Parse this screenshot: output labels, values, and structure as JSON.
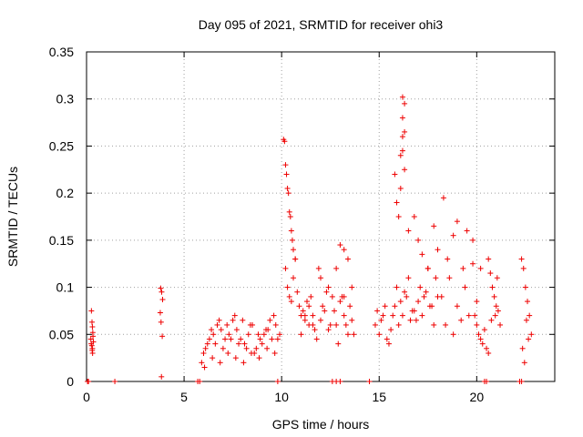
{
  "chart_data": {
    "type": "scatter",
    "title": "Day 095 of 2021, SRMTID for receiver ohi3",
    "xlabel": "GPS time / hours",
    "ylabel": "SRMTID / TECUs",
    "xlim": [
      0,
      24
    ],
    "ylim": [
      0,
      0.35
    ],
    "x_ticks": [
      0,
      5,
      10,
      15,
      20
    ],
    "x_tick_labels": [
      "0",
      "5",
      "10",
      "15",
      "20"
    ],
    "y_ticks": [
      0,
      0.05,
      0.1,
      0.15,
      0.2,
      0.25,
      0.3,
      0.35
    ],
    "y_tick_labels": [
      "0",
      "0.05",
      "0.1",
      "0.15",
      "0.2",
      "0.25",
      "0.3",
      "0.35"
    ],
    "grid": true,
    "marker": "+",
    "color": "#ee0000",
    "series": [
      {
        "name": "SRMTID",
        "x": [
          0.05,
          0.1,
          1.45,
          5.7,
          5.8,
          9.8,
          12.6,
          12.8,
          13.0,
          14.5,
          20.4,
          20.5,
          22.2,
          22.3,
          0.25,
          0.28,
          0.3,
          0.32,
          0.22,
          0.35,
          0.27,
          0.3,
          0.24,
          0.33,
          0.29,
          0.31,
          3.8,
          3.85,
          3.9,
          3.78,
          3.82,
          3.88,
          3.84,
          5.9,
          6.1,
          6.3,
          6.5,
          6.7,
          6.9,
          7.1,
          7.3,
          7.5,
          7.7,
          7.9,
          8.1,
          8.3,
          8.5,
          8.7,
          8.9,
          9.1,
          9.3,
          9.5,
          9.7,
          9.9,
          6.0,
          6.2,
          6.4,
          6.6,
          6.8,
          7.0,
          7.2,
          7.4,
          7.6,
          7.8,
          8.0,
          8.2,
          8.4,
          8.6,
          8.8,
          9.0,
          9.2,
          9.4,
          9.6,
          9.8,
          6.05,
          6.45,
          6.85,
          7.25,
          7.65,
          8.05,
          8.45,
          8.85,
          9.25,
          9.65,
          10.1,
          10.15,
          10.2,
          10.25,
          10.3,
          10.35,
          10.4,
          10.45,
          10.5,
          10.55,
          10.6,
          10.7,
          10.2,
          10.3,
          10.4,
          10.5,
          10.6,
          10.7,
          10.8,
          10.9,
          11.0,
          11.1,
          11.2,
          11.3,
          11.4,
          11.5,
          11.6,
          11.7,
          11.0,
          11.2,
          11.4,
          11.6,
          11.8,
          12.0,
          12.2,
          12.4,
          12.6,
          12.8,
          13.0,
          13.2,
          13.4,
          13.6,
          11.9,
          12.1,
          12.3,
          12.5,
          12.7,
          12.9,
          13.1,
          13.3,
          13.5,
          13.7,
          12.0,
          12.4,
          12.8,
          13.2,
          13.6,
          13.0,
          13.2,
          13.4,
          14.8,
          15.0,
          15.2,
          15.4,
          15.6,
          15.8,
          16.0,
          16.2,
          16.4,
          16.6,
          16.8,
          17.0,
          17.2,
          17.4,
          17.6,
          17.8,
          18.0,
          14.9,
          15.1,
          15.3,
          15.5,
          15.7,
          15.9,
          16.1,
          16.3,
          16.5,
          16.7,
          16.9,
          17.1,
          17.3,
          17.5,
          17.7,
          17.9,
          15.8,
          15.9,
          16.0,
          16.1,
          16.2,
          16.2,
          16.2,
          16.3,
          16.3,
          16.3,
          16.1,
          16.2,
          16.5,
          16.8,
          17.0,
          17.2,
          17.5,
          17.8,
          18.0,
          18.3,
          18.5,
          18.8,
          19.0,
          19.3,
          19.5,
          19.8,
          18.2,
          18.4,
          18.6,
          18.8,
          19.0,
          19.2,
          19.4,
          19.6,
          19.8,
          20.0,
          20.2,
          19.9,
          20.0,
          20.1,
          20.2,
          20.3,
          20.4,
          20.5,
          20.6,
          20.6,
          20.7,
          20.8,
          20.9,
          21.0,
          21.1,
          21.2,
          21.05,
          20.75,
          20.95,
          22.3,
          22.4,
          22.5,
          22.6,
          22.7,
          22.8,
          22.35,
          22.55,
          22.65,
          22.45
        ],
        "y": [
          0,
          0,
          0,
          0,
          0,
          0,
          0,
          0,
          0,
          0,
          0,
          0,
          0,
          0,
          0.075,
          0.063,
          0.058,
          0.052,
          0.045,
          0.042,
          0.038,
          0.035,
          0.04,
          0.048,
          0.033,
          0.03,
          0.099,
          0.095,
          0.087,
          0.073,
          0.063,
          0.048,
          0.005,
          0.02,
          0.035,
          0.045,
          0.05,
          0.06,
          0.055,
          0.045,
          0.05,
          0.065,
          0.055,
          0.045,
          0.04,
          0.05,
          0.06,
          0.035,
          0.045,
          0.05,
          0.055,
          0.045,
          0.06,
          0.05,
          0.03,
          0.04,
          0.055,
          0.04,
          0.065,
          0.035,
          0.06,
          0.045,
          0.07,
          0.04,
          0.065,
          0.035,
          0.06,
          0.03,
          0.05,
          0.04,
          0.055,
          0.065,
          0.07,
          0.045,
          0.015,
          0.025,
          0.02,
          0.03,
          0.025,
          0.02,
          0.03,
          0.025,
          0.035,
          0.03,
          0.257,
          0.255,
          0.23,
          0.22,
          0.205,
          0.2,
          0.18,
          0.175,
          0.16,
          0.15,
          0.14,
          0.13,
          0.12,
          0.1,
          0.09,
          0.085,
          0.11,
          0.13,
          0.095,
          0.08,
          0.07,
          0.075,
          0.065,
          0.085,
          0.06,
          0.09,
          0.07,
          0.055,
          0.05,
          0.07,
          0.08,
          0.06,
          0.045,
          0.065,
          0.075,
          0.055,
          0.09,
          0.06,
          0.085,
          0.07,
          0.05,
          0.065,
          0.12,
          0.08,
          0.095,
          0.06,
          0.075,
          0.04,
          0.09,
          0.06,
          0.08,
          0.05,
          0.11,
          0.1,
          0.12,
          0.09,
          0.1,
          0.145,
          0.14,
          0.13,
          0.06,
          0.05,
          0.07,
          0.045,
          0.055,
          0.08,
          0.06,
          0.07,
          0.09,
          0.065,
          0.075,
          0.085,
          0.07,
          0.095,
          0.08,
          0.06,
          0.09,
          0.075,
          0.065,
          0.08,
          0.04,
          0.07,
          0.1,
          0.085,
          0.095,
          0.11,
          0.075,
          0.065,
          0.1,
          0.09,
          0.12,
          0.08,
          0.11,
          0.22,
          0.19,
          0.175,
          0.24,
          0.26,
          0.28,
          0.302,
          0.295,
          0.265,
          0.225,
          0.205,
          0.245,
          0.16,
          0.175,
          0.15,
          0.135,
          0.12,
          0.165,
          0.14,
          0.195,
          0.13,
          0.155,
          0.17,
          0.12,
          0.16,
          0.15,
          0.09,
          0.06,
          0.11,
          0.05,
          0.08,
          0.065,
          0.1,
          0.07,
          0.125,
          0.085,
          0.12,
          0.07,
          0.06,
          0.05,
          0.045,
          0.04,
          0.055,
          0.035,
          0.03,
          0.13,
          0.115,
          0.1,
          0.09,
          0.08,
          0.075,
          0.06,
          0.11,
          0.065,
          0.07,
          0.13,
          0.12,
          0.1,
          0.085,
          0.07,
          0.05,
          0.035,
          0.065,
          0.045,
          0.02
        ]
      }
    ]
  }
}
